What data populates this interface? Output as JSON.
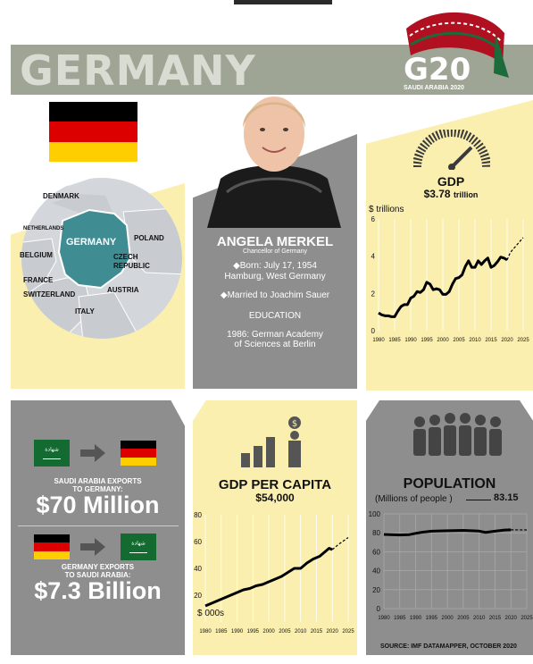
{
  "header": {
    "title": "GERMANY",
    "g20": "G20",
    "g20_sub": "SAUDI ARABIA 2020"
  },
  "map": {
    "labels": [
      "DENMARK",
      "NETHERLANDS",
      "GERMANY",
      "POLAND",
      "BELGIUM",
      "CZECH",
      "REPUBLIC",
      "FRANCE",
      "SWITZERLAND",
      "AUSTRIA",
      "ITALY"
    ]
  },
  "leader": {
    "name": "ANGELA MERKEL",
    "role": "Chancellor of Germany",
    "born1": "◆Born: July 17, 1954",
    "born2": "Hamburg, West Germany",
    "married": "◆Married to Joachim Sauer",
    "education_heading": "EDUCATION",
    "education1": "1986: German Academy",
    "education2": "of Sciences at Berlin"
  },
  "trade": {
    "export_label1": "SAUDI ARABIA EXPORTS",
    "export_label2": "TO GERMANY:",
    "export_value": "$70 Million",
    "import_label1": "GERMANY EXPORTS",
    "import_label2": "TO SAUDI ARABIA:",
    "import_value": "$7.3 Billion"
  },
  "colors": {
    "yellow": "#fbefb0",
    "gray": "#8e8e8e",
    "teal": "#3f8d93",
    "header": "#9fa595"
  },
  "source": "SOURCE: IMF DATAMAPPER, OCTOBER 2020",
  "chart_data": [
    {
      "type": "line",
      "title": "GDP",
      "subtitle_value": "$3.78",
      "subtitle_unit": "trillion",
      "ylabel": "$ trillions",
      "x_ticks": [
        "1980",
        "1985",
        "1990",
        "1995",
        "2000",
        "2005",
        "2010",
        "2015",
        "2020",
        "2025"
      ],
      "y_ticks": [
        "0",
        "2",
        "4",
        "6"
      ],
      "ylim": [
        0,
        6
      ],
      "xlim": [
        1980,
        2025
      ],
      "grid": true,
      "x": [
        1980,
        1981,
        1982,
        1983,
        1984,
        1985,
        1986,
        1987,
        1988,
        1989,
        1990,
        1991,
        1992,
        1993,
        1994,
        1995,
        1996,
        1997,
        1998,
        1999,
        2000,
        2001,
        2002,
        2003,
        2004,
        2005,
        2006,
        2007,
        2008,
        2009,
        2010,
        2011,
        2012,
        2013,
        2014,
        2015,
        2016,
        2017,
        2018,
        2019,
        2020
      ],
      "y": [
        0.95,
        0.85,
        0.8,
        0.8,
        0.75,
        0.75,
        1.05,
        1.3,
        1.4,
        1.4,
        1.75,
        1.85,
        2.1,
        2.05,
        2.2,
        2.6,
        2.5,
        2.2,
        2.25,
        2.2,
        1.95,
        1.95,
        2.1,
        2.5,
        2.8,
        2.85,
        3.0,
        3.45,
        3.75,
        3.4,
        3.4,
        3.75,
        3.55,
        3.75,
        3.9,
        3.4,
        3.5,
        3.7,
        3.95,
        3.9,
        3.8
      ],
      "projection_x": [
        2020,
        2021,
        2022,
        2023,
        2024,
        2025
      ],
      "projection_y": [
        3.8,
        4.2,
        4.4,
        4.6,
        4.8,
        5.0
      ]
    },
    {
      "type": "line",
      "title": "GDP PER CAPITA",
      "subtitle_value": "$54,000",
      "ylabel": "$ 000s",
      "x_ticks": [
        "1980",
        "1985",
        "1990",
        "1995",
        "2000",
        "2005",
        "2010",
        "2015",
        "2020",
        "2025"
      ],
      "y_ticks": [
        "20",
        "40",
        "60",
        "80"
      ],
      "ylim": [
        0,
        80
      ],
      "xlim": [
        1980,
        2025
      ],
      "grid": true,
      "x": [
        1980,
        1982,
        1984,
        1986,
        1988,
        1990,
        1992,
        1994,
        1996,
        1998,
        2000,
        2002,
        2004,
        2006,
        2008,
        2010,
        2012,
        2014,
        2016,
        2018,
        2019,
        2020
      ],
      "y": [
        12,
        14,
        16,
        18,
        20,
        22,
        24,
        25,
        27,
        28,
        30,
        32,
        34,
        37,
        40,
        40,
        44,
        47,
        49,
        53,
        55,
        54
      ],
      "projection_x": [
        2020,
        2022,
        2025
      ],
      "projection_y": [
        54,
        58,
        63
      ]
    },
    {
      "type": "line",
      "title": "POPULATION",
      "ylabel": "(Millions of people )",
      "latest_value": "83.15",
      "x_ticks": [
        "1980",
        "1985",
        "1990",
        "1995",
        "2000",
        "2005",
        "2010",
        "2015",
        "2020",
        "2025"
      ],
      "y_ticks": [
        "0",
        "20",
        "40",
        "60",
        "80",
        "100"
      ],
      "ylim": [
        0,
        100
      ],
      "xlim": [
        1980,
        2025
      ],
      "grid": true,
      "x": [
        1980,
        1985,
        1988,
        1990,
        1992,
        1995,
        2000,
        2005,
        2010,
        2012,
        2015,
        2018,
        2020
      ],
      "y": [
        78.3,
        77.7,
        78.1,
        79.4,
        80.6,
        81.7,
        82.2,
        82.5,
        81.8,
        80.4,
        81.7,
        82.9,
        83.15
      ],
      "projection_x": [
        2020,
        2025
      ],
      "projection_y": [
        83.15,
        83.0
      ]
    }
  ]
}
